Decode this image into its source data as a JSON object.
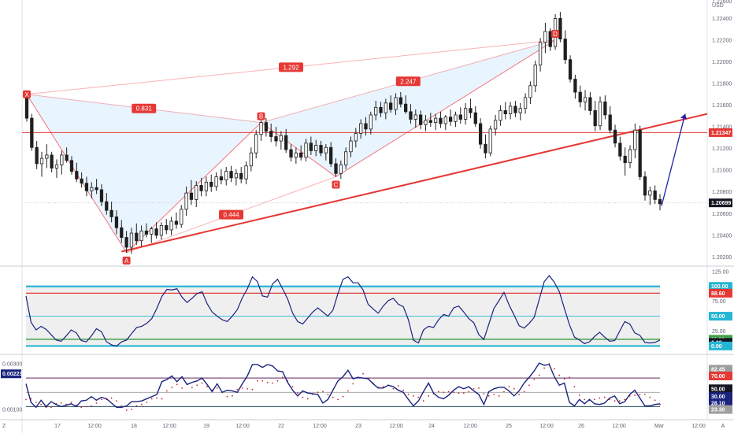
{
  "chart_data": {
    "type": "candlestick",
    "currency": "USD",
    "corner_label": "Z",
    "price_axis_ticks": [
      "1.22400",
      "1.22200",
      "1.22000",
      "1.21800",
      "1.21600",
      "1.21400",
      "1.21200",
      "1.21000",
      "1.20800",
      "1.20600",
      "1.20400",
      "1.20200"
    ],
    "price_axis_top_partial": "1.22600",
    "price_range": [
      1.2013,
      1.2257
    ],
    "x_axis_ticks": [
      "17",
      "12:00",
      "18",
      "12:00",
      "19",
      "12:00",
      "22",
      "12:00",
      "23",
      "12:00",
      "24",
      "12:00",
      "25",
      "12:00",
      "26",
      "12:00",
      "Mar",
      "12:00",
      "A"
    ],
    "last_price": "1.20699",
    "resistance_price": "1.21347",
    "resistance_level": 1.21347,
    "harmonic_pattern": {
      "points": [
        {
          "label": "X",
          "price": 1.217
        },
        {
          "label": "A",
          "price": 1.2024
        },
        {
          "label": "B",
          "price": 1.2144
        },
        {
          "label": "C",
          "price": 1.2094
        },
        {
          "label": "D",
          "price": 1.222
        }
      ],
      "ratios": [
        "1.292",
        "0.831",
        "2.247",
        "0.444"
      ]
    },
    "trendline": {
      "from_price": 1.2025,
      "to_price": 1.2152
    },
    "projection": {
      "from_price": 1.2067,
      "to_price": 1.2152
    },
    "candles": [
      [
        1.2168,
        1.2173,
        1.2145,
        1.2148
      ],
      [
        1.2148,
        1.2152,
        1.2118,
        1.2121
      ],
      [
        1.2121,
        1.2127,
        1.2101,
        1.2106
      ],
      [
        1.2106,
        1.2117,
        1.2094,
        1.2111
      ],
      [
        1.2111,
        1.2124,
        1.2102,
        1.2114
      ],
      [
        1.2114,
        1.2117,
        1.2098,
        1.2102
      ],
      [
        1.2102,
        1.211,
        1.2093,
        1.2105
      ],
      [
        1.2105,
        1.2118,
        1.2096,
        1.2114
      ],
      [
        1.2114,
        1.2121,
        1.2107,
        1.2109
      ],
      [
        1.2109,
        1.2113,
        1.2096,
        1.2099
      ],
      [
        1.2099,
        1.2107,
        1.2089,
        1.2092
      ],
      [
        1.2092,
        1.2098,
        1.2084,
        1.2088
      ],
      [
        1.2088,
        1.2094,
        1.2076,
        1.2081
      ],
      [
        1.2081,
        1.2089,
        1.2074,
        1.2084
      ],
      [
        1.2084,
        1.2092,
        1.2078,
        1.2082
      ],
      [
        1.2082,
        1.2087,
        1.2067,
        1.2071
      ],
      [
        1.2071,
        1.2079,
        1.2059,
        1.2063
      ],
      [
        1.2063,
        1.2071,
        1.2052,
        1.2057
      ],
      [
        1.2057,
        1.2063,
        1.2041,
        1.2047
      ],
      [
        1.2047,
        1.2054,
        1.2033,
        1.2038
      ],
      [
        1.2038,
        1.2044,
        1.2024,
        1.2029
      ],
      [
        1.2029,
        1.2047,
        1.2023,
        1.2042
      ],
      [
        1.2042,
        1.2051,
        1.2031,
        1.2035
      ],
      [
        1.2035,
        1.2049,
        1.203,
        1.2044
      ],
      [
        1.2044,
        1.2051,
        1.2038,
        1.2041
      ],
      [
        1.2041,
        1.2048,
        1.2033,
        1.2046
      ],
      [
        1.2046,
        1.2052,
        1.2037,
        1.204
      ],
      [
        1.204,
        1.2052,
        1.2036,
        1.2049
      ],
      [
        1.2049,
        1.2055,
        1.2041,
        1.2045
      ],
      [
        1.2045,
        1.2057,
        1.204,
        1.2053
      ],
      [
        1.2053,
        1.2061,
        1.2046,
        1.205
      ],
      [
        1.205,
        1.2068,
        1.2047,
        1.2064
      ],
      [
        1.2064,
        1.2085,
        1.2058,
        1.2079
      ],
      [
        1.2079,
        1.2091,
        1.2068,
        1.2073
      ],
      [
        1.2073,
        1.209,
        1.2066,
        1.2086
      ],
      [
        1.2086,
        1.2093,
        1.2076,
        1.2081
      ],
      [
        1.2081,
        1.2094,
        1.2076,
        1.2089
      ],
      [
        1.2089,
        1.2096,
        1.208,
        1.2085
      ],
      [
        1.2085,
        1.2098,
        1.2081,
        1.2094
      ],
      [
        1.2094,
        1.2101,
        1.2087,
        1.2091
      ],
      [
        1.2091,
        1.2103,
        1.2086,
        1.2099
      ],
      [
        1.2099,
        1.2104,
        1.2089,
        1.2093
      ],
      [
        1.2093,
        1.2101,
        1.2086,
        1.2097
      ],
      [
        1.2097,
        1.2103,
        1.2088,
        1.2092
      ],
      [
        1.2092,
        1.2108,
        1.2087,
        1.2104
      ],
      [
        1.2104,
        1.2121,
        1.2099,
        1.2116
      ],
      [
        1.2116,
        1.2137,
        1.2111,
        1.2133
      ],
      [
        1.2133,
        1.2148,
        1.2127,
        1.2144
      ],
      [
        1.2144,
        1.2148,
        1.2131,
        1.2136
      ],
      [
        1.2136,
        1.2143,
        1.2126,
        1.2131
      ],
      [
        1.2131,
        1.214,
        1.2122,
        1.2127
      ],
      [
        1.2127,
        1.2136,
        1.2119,
        1.2132
      ],
      [
        1.2132,
        1.2138,
        1.2116,
        1.2119
      ],
      [
        1.2119,
        1.2124,
        1.2108,
        1.2112
      ],
      [
        1.2112,
        1.2121,
        1.2106,
        1.2116
      ],
      [
        1.2116,
        1.2123,
        1.2109,
        1.2112
      ],
      [
        1.2112,
        1.2129,
        1.2108,
        1.2125
      ],
      [
        1.2125,
        1.2131,
        1.2114,
        1.2118
      ],
      [
        1.2118,
        1.2128,
        1.2113,
        1.2123
      ],
      [
        1.2123,
        1.2127,
        1.2113,
        1.2116
      ],
      [
        1.2116,
        1.2124,
        1.2109,
        1.2121
      ],
      [
        1.2121,
        1.2126,
        1.2103,
        1.2106
      ],
      [
        1.2106,
        1.2111,
        1.2094,
        1.2097
      ],
      [
        1.2097,
        1.2109,
        1.2092,
        1.2105
      ],
      [
        1.2105,
        1.2121,
        1.2101,
        1.2117
      ],
      [
        1.2117,
        1.2131,
        1.2112,
        1.2127
      ],
      [
        1.2127,
        1.2139,
        1.2121,
        1.2134
      ],
      [
        1.2134,
        1.2147,
        1.2129,
        1.2143
      ],
      [
        1.2143,
        1.2149,
        1.2132,
        1.2138
      ],
      [
        1.2138,
        1.2154,
        1.2133,
        1.2151
      ],
      [
        1.2151,
        1.2164,
        1.2146,
        1.2158
      ],
      [
        1.2158,
        1.2163,
        1.2149,
        1.2153
      ],
      [
        1.2153,
        1.2166,
        1.2147,
        1.2162
      ],
      [
        1.2162,
        1.2169,
        1.2153,
        1.2156
      ],
      [
        1.2156,
        1.2171,
        1.2151,
        1.2167
      ],
      [
        1.2167,
        1.2172,
        1.2158,
        1.2161
      ],
      [
        1.2161,
        1.2169,
        1.2152,
        1.2154
      ],
      [
        1.2154,
        1.2161,
        1.2143,
        1.2147
      ],
      [
        1.2147,
        1.2156,
        1.2139,
        1.2151
      ],
      [
        1.2151,
        1.2155,
        1.2138,
        1.2142
      ],
      [
        1.2142,
        1.2151,
        1.2136,
        1.2146
      ],
      [
        1.2146,
        1.2153,
        1.214,
        1.2144
      ],
      [
        1.2144,
        1.2152,
        1.2137,
        1.2148
      ],
      [
        1.2148,
        1.2154,
        1.2139,
        1.2143
      ],
      [
        1.2143,
        1.2151,
        1.2137,
        1.2149
      ],
      [
        1.2149,
        1.2156,
        1.2141,
        1.2145
      ],
      [
        1.2145,
        1.2154,
        1.214,
        1.2151
      ],
      [
        1.2151,
        1.2158,
        1.2143,
        1.2147
      ],
      [
        1.2147,
        1.2162,
        1.2142,
        1.2157
      ],
      [
        1.2157,
        1.2166,
        1.2148,
        1.2153
      ],
      [
        1.2153,
        1.2159,
        1.214,
        1.2143
      ],
      [
        1.2143,
        1.2148,
        1.212,
        1.2124
      ],
      [
        1.2124,
        1.2133,
        1.2111,
        1.2116
      ],
      [
        1.2116,
        1.2141,
        1.2113,
        1.2138
      ],
      [
        1.2138,
        1.2151,
        1.2132,
        1.2146
      ],
      [
        1.2146,
        1.216,
        1.2141,
        1.2155
      ],
      [
        1.2155,
        1.2163,
        1.2147,
        1.2152
      ],
      [
        1.2152,
        1.2163,
        1.2147,
        1.2159
      ],
      [
        1.2159,
        1.2164,
        1.2149,
        1.2153
      ],
      [
        1.2153,
        1.2162,
        1.2146,
        1.2157
      ],
      [
        1.2157,
        1.2171,
        1.2152,
        1.2167
      ],
      [
        1.2167,
        1.2182,
        1.2161,
        1.2178
      ],
      [
        1.2178,
        1.2201,
        1.2172,
        1.2197
      ],
      [
        1.2197,
        1.2222,
        1.2191,
        1.2218
      ],
      [
        1.2218,
        1.2236,
        1.2208,
        1.2228
      ],
      [
        1.2228,
        1.2231,
        1.221,
        1.2214
      ],
      [
        1.2214,
        1.2244,
        1.2211,
        1.224
      ],
      [
        1.224,
        1.2246,
        1.2218,
        1.2221
      ],
      [
        1.2221,
        1.2229,
        1.2198,
        1.2202
      ],
      [
        1.2202,
        1.2206,
        1.2181,
        1.2184
      ],
      [
        1.2184,
        1.2188,
        1.2166,
        1.2172
      ],
      [
        1.2172,
        1.2178,
        1.2158,
        1.2163
      ],
      [
        1.2163,
        1.2174,
        1.2155,
        1.2167
      ],
      [
        1.2167,
        1.2172,
        1.2151,
        1.2155
      ],
      [
        1.2155,
        1.2164,
        1.2136,
        1.2141
      ],
      [
        1.2141,
        1.2168,
        1.2137,
        1.2163
      ],
      [
        1.2163,
        1.2169,
        1.2147,
        1.2151
      ],
      [
        1.2151,
        1.2159,
        1.2134,
        1.2137
      ],
      [
        1.2137,
        1.2142,
        1.2121,
        1.2125
      ],
      [
        1.2125,
        1.2131,
        1.2109,
        1.2113
      ],
      [
        1.2113,
        1.2121,
        1.2095,
        1.2107
      ],
      [
        1.2107,
        1.2123,
        1.2102,
        1.2119
      ],
      [
        1.2119,
        1.2143,
        1.2111,
        1.2137
      ],
      [
        1.2137,
        1.2141,
        1.2091,
        1.2094
      ],
      [
        1.2094,
        1.2099,
        1.2072,
        1.2077
      ],
      [
        1.2077,
        1.2085,
        1.2068,
        1.2081
      ],
      [
        1.2081,
        1.2086,
        1.2069,
        1.2073
      ],
      [
        1.2073,
        1.2078,
        1.2063,
        1.2069
      ]
    ],
    "oscillator_1": {
      "axis_ticks": [
        "125.00",
        "100.00",
        "88.60",
        "75.00",
        "50.00",
        "25.00",
        "11.30",
        "6.08",
        "0.00"
      ],
      "range": [
        -10,
        130
      ],
      "levels": {
        "upper_band": 100,
        "upper_red": 88.6,
        "mid": 50,
        "lower_green": 11.3,
        "lower_band": 0
      },
      "highlighted_tags": [
        "100.00",
        "88.60",
        "50.00",
        "11.30",
        "6.08",
        "0.00"
      ],
      "values": [
        84,
        40,
        27,
        33,
        28,
        19,
        10,
        8,
        17,
        27,
        22,
        9,
        7,
        17,
        29,
        24,
        7,
        2,
        0,
        7,
        10,
        21,
        31,
        33,
        38,
        46,
        63,
        83,
        95,
        94,
        96,
        82,
        73,
        80,
        88,
        91,
        71,
        57,
        50,
        44,
        41,
        50,
        61,
        81,
        96,
        116,
        108,
        84,
        82,
        104,
        112,
        96,
        79,
        55,
        41,
        37,
        47,
        57,
        64,
        57,
        50,
        60,
        88,
        112,
        116,
        106,
        106,
        94,
        70,
        62,
        55,
        67,
        76,
        80,
        70,
        66,
        44,
        10,
        5,
        27,
        33,
        31,
        44,
        53,
        50,
        64,
        67,
        57,
        46,
        39,
        19,
        11,
        37,
        63,
        76,
        90,
        69,
        52,
        34,
        30,
        38,
        48,
        78,
        108,
        118,
        107,
        91,
        63,
        36,
        15,
        10,
        4,
        7,
        16,
        23,
        15,
        8,
        9,
        25,
        41,
        37,
        22,
        18,
        6,
        5,
        6,
        10
      ]
    },
    "oscillator_2": {
      "axis_ticks": [
        "0.00300",
        "0.00100"
      ],
      "last_value_tag": "0.00223",
      "right_tags": [
        "82.45",
        "70.00",
        "50.00",
        "30.00",
        "28.10",
        "23.30"
      ],
      "range": [
        15,
        100
      ],
      "levels": {
        "upper": 70,
        "mid": 50,
        "lower": 30
      },
      "main": [
        62,
        36,
        29,
        39,
        30,
        37,
        33,
        30,
        32,
        34,
        30,
        38,
        39,
        44,
        39,
        43,
        41,
        35,
        29,
        29,
        31,
        37,
        37,
        38,
        41,
        44,
        47,
        65,
        68,
        73,
        65,
        72,
        61,
        64,
        66,
        70,
        61,
        51,
        62,
        50,
        53,
        52,
        50,
        62,
        73,
        89,
        89,
        85,
        89,
        87,
        80,
        79,
        64,
        53,
        45,
        52,
        49,
        48,
        47,
        35,
        40,
        53,
        66,
        72,
        81,
        69,
        71,
        70,
        69,
        62,
        56,
        56,
        60,
        58,
        53,
        50,
        40,
        31,
        38,
        51,
        63,
        49,
        43,
        41,
        46,
        53,
        58,
        55,
        58,
        52,
        47,
        33,
        51,
        55,
        57,
        57,
        52,
        45,
        52,
        63,
        71,
        80,
        91,
        88,
        89,
        72,
        60,
        63,
        36,
        31,
        40,
        34,
        40,
        34,
        33,
        35,
        42,
        45,
        34,
        37,
        47,
        53,
        42,
        31,
        31,
        33,
        34
      ],
      "signal": [
        40,
        41,
        36,
        33,
        29,
        29,
        34,
        35,
        33,
        36,
        32,
        29,
        30,
        31,
        35,
        40,
        40,
        42,
        38,
        31,
        25,
        26,
        31,
        33,
        36,
        41,
        42,
        41,
        52,
        57,
        61,
        56,
        61,
        57,
        60,
        63,
        58,
        53,
        56,
        50,
        44,
        45,
        54,
        56,
        55,
        54,
        66,
        66,
        64,
        63,
        66,
        71,
        66,
        58,
        49,
        43,
        41,
        47,
        50,
        51,
        47,
        43,
        40,
        44,
        52,
        62,
        71,
        76,
        70,
        63,
        57,
        58,
        60,
        55,
        59,
        53,
        47,
        45,
        43,
        38,
        45,
        48,
        51,
        50,
        51,
        50,
        49,
        49,
        51,
        55,
        56,
        48,
        45,
        47,
        45,
        51,
        58,
        55,
        47,
        51,
        60,
        68,
        74,
        84,
        90,
        83,
        74,
        69,
        71,
        58,
        46,
        40,
        39,
        40,
        42,
        43,
        40,
        38,
        38,
        40,
        45,
        46,
        47,
        47,
        43,
        39,
        33
      ]
    }
  }
}
